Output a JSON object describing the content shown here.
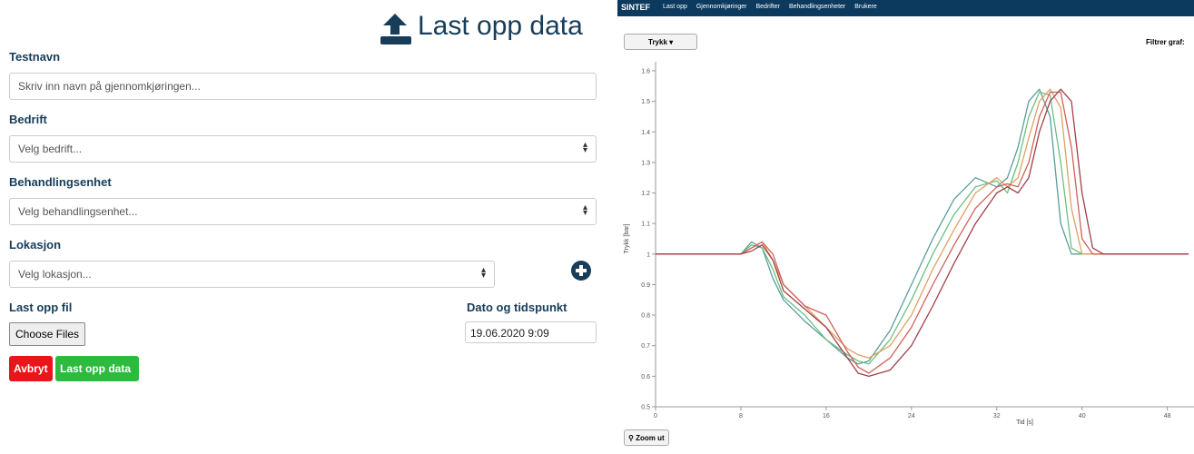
{
  "form": {
    "title": "Last opp data",
    "fields": [
      {
        "label": "Testnavn",
        "placeholder": "Skriv inn navn på gjennomkjøringen..."
      },
      {
        "label": "Bedrift",
        "placeholder": "Velg bedrift..."
      },
      {
        "label": "Behandlingsenhet",
        "placeholder": "Velg behandlingsenhet..."
      },
      {
        "label": "Lokasjon",
        "placeholder": "Velg lokasjon..."
      }
    ],
    "file_label": "Last opp fil",
    "file_button": "Choose Files",
    "date_label": "Dato og tidspunkt",
    "date_value": "19.06.2020 9:09",
    "cancel": "Avbryt",
    "submit": "Last opp data"
  },
  "navbar": {
    "brand": "SINTEF",
    "links": [
      "Last opp",
      "Gjennomkjøringer",
      "Bedrifter",
      "Behandlingsenheter",
      "Brukere"
    ]
  },
  "toolbar": {
    "dropdown": "Trykk",
    "filter": "Filtrer graf:",
    "zoom": "Zoom ut"
  },
  "chart_data": {
    "type": "line",
    "x_label": "Tid [s]",
    "y_label": "Trykk [bar]",
    "xlim": [
      0,
      50.5
    ],
    "ylim": [
      0.5,
      1.6
    ],
    "xticks": [
      0,
      8,
      16,
      24,
      32,
      40,
      48
    ],
    "yticks": [
      0.5,
      0.6,
      0.7,
      0.8,
      0.9,
      1,
      1.1,
      1.2,
      1.3,
      1.4,
      1.5,
      1.6
    ],
    "grid": false,
    "x": [
      0,
      8,
      9,
      10,
      11,
      12,
      14,
      16,
      18,
      19,
      20,
      22,
      24,
      26,
      28,
      30,
      32,
      33,
      34,
      35,
      36,
      37,
      38,
      39,
      40,
      41,
      42,
      44,
      50
    ],
    "series": [
      {
        "color": "#5a9e9a",
        "values": [
          1,
          1,
          1.04,
          1.02,
          0.92,
          0.85,
          0.78,
          0.72,
          0.66,
          0.64,
          0.65,
          0.75,
          0.9,
          1.05,
          1.18,
          1.25,
          1.22,
          1.25,
          1.35,
          1.5,
          1.54,
          1.45,
          1.1,
          1.0,
          1.0,
          1.0,
          1.0,
          1.0,
          1.0
        ]
      },
      {
        "color": "#6cbf84",
        "values": [
          1,
          1,
          1.03,
          1.02,
          0.95,
          0.86,
          0.8,
          0.72,
          0.67,
          0.65,
          0.64,
          0.72,
          0.85,
          1.0,
          1.13,
          1.22,
          1.24,
          1.2,
          1.3,
          1.45,
          1.53,
          1.52,
          1.3,
          1.02,
          1.0,
          1.0,
          1.0,
          1.0,
          1.0
        ]
      },
      {
        "color": "#e0a060",
        "values": [
          1,
          1,
          1.02,
          1.04,
          0.98,
          0.9,
          0.83,
          0.76,
          0.69,
          0.67,
          0.66,
          0.7,
          0.8,
          0.95,
          1.08,
          1.2,
          1.25,
          1.22,
          1.25,
          1.38,
          1.5,
          1.54,
          1.48,
          1.15,
          1.0,
          1.0,
          1.0,
          1.0,
          1.0
        ]
      },
      {
        "color": "#d0605a",
        "values": [
          1,
          1,
          1.02,
          1.04,
          1.0,
          0.9,
          0.83,
          0.8,
          0.68,
          0.63,
          0.61,
          0.66,
          0.76,
          0.9,
          1.03,
          1.15,
          1.22,
          1.23,
          1.22,
          1.3,
          1.45,
          1.53,
          1.53,
          1.35,
          1.05,
          1.0,
          1.0,
          1.0,
          1.0
        ]
      },
      {
        "color": "#a0404a",
        "values": [
          1,
          1,
          1.01,
          1.03,
          0.98,
          0.88,
          0.82,
          0.76,
          0.66,
          0.61,
          0.6,
          0.62,
          0.7,
          0.83,
          0.97,
          1.1,
          1.2,
          1.22,
          1.2,
          1.25,
          1.4,
          1.5,
          1.54,
          1.5,
          1.2,
          1.02,
          1.0,
          1.0,
          1.0
        ]
      }
    ]
  }
}
